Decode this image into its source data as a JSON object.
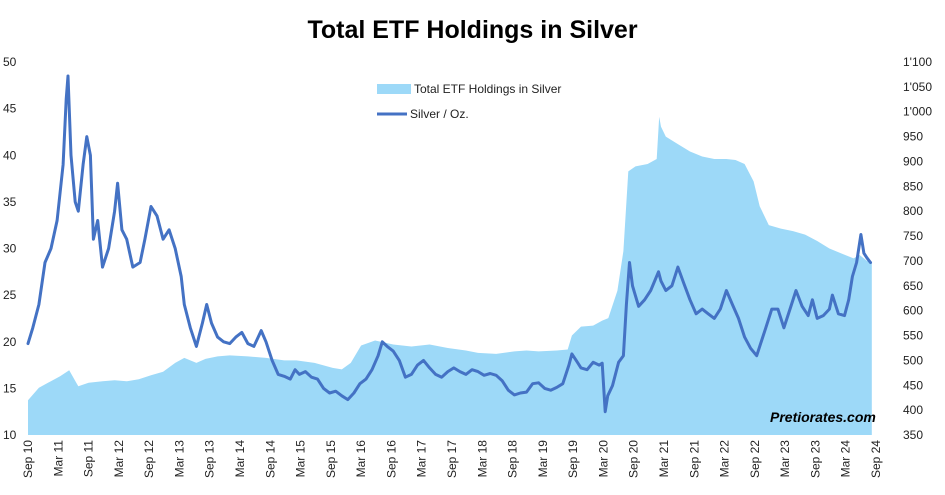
{
  "chart_data": {
    "type": "line",
    "title": "Total ETF Holdings in Silver",
    "watermark": "Pretiorates.com",
    "left_axis": {
      "ylim": [
        10,
        50
      ],
      "ticks": [
        10,
        15,
        20,
        25,
        30,
        35,
        40,
        45,
        50
      ],
      "tick_labels": [
        "10",
        "15",
        "20",
        "25",
        "30",
        "35",
        "40",
        "45",
        "50"
      ]
    },
    "right_axis": {
      "ylim": [
        350,
        1100
      ],
      "ticks": [
        350,
        400,
        450,
        500,
        550,
        600,
        650,
        700,
        750,
        800,
        850,
        900,
        950,
        1000,
        1050,
        1100
      ],
      "tick_labels": [
        "350",
        "400",
        "450",
        "500",
        "550",
        "600",
        "650",
        "700",
        "750",
        "800",
        "850",
        "900",
        "950",
        "1'000",
        "1'050",
        "1'100"
      ]
    },
    "x_axis": {
      "xlim": [
        2010.67,
        2024.67
      ],
      "ticks": [
        2010.67,
        2011.17,
        2011.67,
        2012.17,
        2012.67,
        2013.17,
        2013.67,
        2014.17,
        2014.67,
        2015.17,
        2015.67,
        2016.17,
        2016.67,
        2017.17,
        2017.67,
        2018.17,
        2018.67,
        2019.17,
        2019.67,
        2020.17,
        2020.67,
        2021.17,
        2021.67,
        2022.17,
        2022.67,
        2023.17,
        2023.67,
        2024.17,
        2024.67
      ],
      "tick_labels": [
        "Sep 10",
        "Mar 11",
        "Sep 11",
        "Mar 12",
        "Sep 12",
        "Mar 13",
        "Sep 13",
        "Mar 14",
        "Sep 14",
        "Mar 15",
        "Sep 15",
        "Mar 16",
        "Sep 16",
        "Mar 17",
        "Sep 17",
        "Mar 18",
        "Sep 18",
        "Mar 19",
        "Sep 19",
        "Mar 20",
        "Sep 20",
        "Mar 21",
        "Sep 21",
        "Mar 22",
        "Sep 22",
        "Mar 23",
        "Sep 23",
        "Mar 24",
        "Sep 24"
      ]
    },
    "legend": {
      "position": "top-center",
      "items": [
        {
          "label": "Total ETF Holdings in Silver",
          "kind": "area"
        },
        {
          "label": "Silver / Oz.",
          "kind": "line"
        }
      ]
    },
    "colors": {
      "area": "#9dd9f8",
      "line": "#4472c4"
    },
    "series": [
      {
        "name": "Total ETF Holdings in Silver",
        "type": "area",
        "axis": "right",
        "points": [
          [
            2010.67,
            420
          ],
          [
            2010.85,
            445
          ],
          [
            2011.0,
            455
          ],
          [
            2011.2,
            468
          ],
          [
            2011.35,
            480
          ],
          [
            2011.5,
            448
          ],
          [
            2011.67,
            455
          ],
          [
            2011.9,
            458
          ],
          [
            2012.1,
            460
          ],
          [
            2012.3,
            458
          ],
          [
            2012.5,
            462
          ],
          [
            2012.7,
            470
          ],
          [
            2012.9,
            477
          ],
          [
            2013.1,
            495
          ],
          [
            2013.25,
            505
          ],
          [
            2013.45,
            495
          ],
          [
            2013.6,
            503
          ],
          [
            2013.8,
            508
          ],
          [
            2014.0,
            510
          ],
          [
            2014.3,
            508
          ],
          [
            2014.6,
            505
          ],
          [
            2014.9,
            500
          ],
          [
            2015.1,
            500
          ],
          [
            2015.4,
            495
          ],
          [
            2015.7,
            485
          ],
          [
            2015.85,
            482
          ],
          [
            2016.0,
            495
          ],
          [
            2016.17,
            530
          ],
          [
            2016.4,
            540
          ],
          [
            2016.7,
            532
          ],
          [
            2017.0,
            528
          ],
          [
            2017.3,
            532
          ],
          [
            2017.6,
            525
          ],
          [
            2017.9,
            520
          ],
          [
            2018.1,
            515
          ],
          [
            2018.4,
            513
          ],
          [
            2018.7,
            518
          ],
          [
            2018.9,
            520
          ],
          [
            2019.1,
            518
          ],
          [
            2019.4,
            520
          ],
          [
            2019.58,
            522
          ],
          [
            2019.65,
            550
          ],
          [
            2019.8,
            568
          ],
          [
            2020.0,
            570
          ],
          [
            2020.15,
            580
          ],
          [
            2020.25,
            585
          ],
          [
            2020.4,
            640
          ],
          [
            2020.5,
            720
          ],
          [
            2020.58,
            880
          ],
          [
            2020.7,
            890
          ],
          [
            2020.9,
            895
          ],
          [
            2021.05,
            905
          ],
          [
            2021.09,
            990
          ],
          [
            2021.12,
            970
          ],
          [
            2021.2,
            950
          ],
          [
            2021.4,
            935
          ],
          [
            2021.6,
            920
          ],
          [
            2021.8,
            910
          ],
          [
            2022.0,
            905
          ],
          [
            2022.2,
            905
          ],
          [
            2022.35,
            903
          ],
          [
            2022.5,
            895
          ],
          [
            2022.65,
            860
          ],
          [
            2022.75,
            810
          ],
          [
            2022.9,
            772
          ],
          [
            2023.1,
            765
          ],
          [
            2023.3,
            760
          ],
          [
            2023.5,
            753
          ],
          [
            2023.7,
            740
          ],
          [
            2023.9,
            725
          ],
          [
            2024.1,
            715
          ],
          [
            2024.3,
            705
          ],
          [
            2024.4,
            712
          ],
          [
            2024.52,
            700
          ],
          [
            2024.6,
            698
          ]
        ]
      },
      {
        "name": "Silver / Oz.",
        "type": "line",
        "axis": "left",
        "points": [
          [
            2010.67,
            19.8
          ],
          [
            2010.75,
            21.5
          ],
          [
            2010.85,
            24
          ],
          [
            2010.95,
            28.5
          ],
          [
            2011.05,
            30
          ],
          [
            2011.15,
            33
          ],
          [
            2011.25,
            39
          ],
          [
            2011.3,
            46
          ],
          [
            2011.33,
            48.5
          ],
          [
            2011.38,
            40
          ],
          [
            2011.45,
            35
          ],
          [
            2011.5,
            34
          ],
          [
            2011.58,
            39
          ],
          [
            2011.64,
            42
          ],
          [
            2011.7,
            40
          ],
          [
            2011.75,
            31
          ],
          [
            2011.82,
            33
          ],
          [
            2011.9,
            28
          ],
          [
            2012.0,
            30
          ],
          [
            2012.1,
            34
          ],
          [
            2012.15,
            37
          ],
          [
            2012.22,
            32
          ],
          [
            2012.3,
            31
          ],
          [
            2012.4,
            28
          ],
          [
            2012.52,
            28.5
          ],
          [
            2012.6,
            31
          ],
          [
            2012.7,
            34.5
          ],
          [
            2012.8,
            33.5
          ],
          [
            2012.9,
            31
          ],
          [
            2013.0,
            32
          ],
          [
            2013.1,
            30
          ],
          [
            2013.2,
            27
          ],
          [
            2013.25,
            24
          ],
          [
            2013.35,
            21.5
          ],
          [
            2013.45,
            19.5
          ],
          [
            2013.55,
            22
          ],
          [
            2013.62,
            24
          ],
          [
            2013.7,
            22
          ],
          [
            2013.8,
            20.5
          ],
          [
            2013.9,
            20
          ],
          [
            2014.0,
            19.8
          ],
          [
            2014.1,
            20.5
          ],
          [
            2014.2,
            21
          ],
          [
            2014.3,
            19.8
          ],
          [
            2014.4,
            19.5
          ],
          [
            2014.52,
            21.2
          ],
          [
            2014.6,
            20
          ],
          [
            2014.7,
            18
          ],
          [
            2014.8,
            16.5
          ],
          [
            2014.9,
            16.3
          ],
          [
            2015.0,
            16
          ],
          [
            2015.08,
            17
          ],
          [
            2015.15,
            16.5
          ],
          [
            2015.25,
            16.8
          ],
          [
            2015.35,
            16.2
          ],
          [
            2015.45,
            16
          ],
          [
            2015.55,
            15
          ],
          [
            2015.65,
            14.5
          ],
          [
            2015.75,
            14.7
          ],
          [
            2015.85,
            14.2
          ],
          [
            2015.95,
            13.8
          ],
          [
            2016.05,
            14.5
          ],
          [
            2016.15,
            15.5
          ],
          [
            2016.25,
            16
          ],
          [
            2016.35,
            17
          ],
          [
            2016.45,
            18.5
          ],
          [
            2016.52,
            20
          ],
          [
            2016.6,
            19.5
          ],
          [
            2016.7,
            19
          ],
          [
            2016.8,
            18
          ],
          [
            2016.9,
            16.2
          ],
          [
            2017.0,
            16.5
          ],
          [
            2017.1,
            17.5
          ],
          [
            2017.2,
            18
          ],
          [
            2017.3,
            17.2
          ],
          [
            2017.4,
            16.5
          ],
          [
            2017.5,
            16.2
          ],
          [
            2017.6,
            16.8
          ],
          [
            2017.7,
            17.2
          ],
          [
            2017.8,
            16.8
          ],
          [
            2017.9,
            16.5
          ],
          [
            2018.0,
            17
          ],
          [
            2018.1,
            16.8
          ],
          [
            2018.2,
            16.4
          ],
          [
            2018.3,
            16.6
          ],
          [
            2018.4,
            16.4
          ],
          [
            2018.5,
            15.8
          ],
          [
            2018.6,
            14.8
          ],
          [
            2018.7,
            14.3
          ],
          [
            2018.8,
            14.5
          ],
          [
            2018.9,
            14.6
          ],
          [
            2019.0,
            15.5
          ],
          [
            2019.1,
            15.6
          ],
          [
            2019.2,
            15
          ],
          [
            2019.3,
            14.8
          ],
          [
            2019.4,
            15.1
          ],
          [
            2019.5,
            15.5
          ],
          [
            2019.6,
            17.5
          ],
          [
            2019.65,
            18.7
          ],
          [
            2019.72,
            18
          ],
          [
            2019.8,
            17.2
          ],
          [
            2019.9,
            17
          ],
          [
            2020.0,
            17.8
          ],
          [
            2020.1,
            17.5
          ],
          [
            2020.15,
            17.7
          ],
          [
            2020.2,
            12.5
          ],
          [
            2020.24,
            14.2
          ],
          [
            2020.32,
            15.3
          ],
          [
            2020.42,
            17.8
          ],
          [
            2020.5,
            18.5
          ],
          [
            2020.55,
            24
          ],
          [
            2020.6,
            28.5
          ],
          [
            2020.65,
            26
          ],
          [
            2020.75,
            23.8
          ],
          [
            2020.85,
            24.5
          ],
          [
            2020.95,
            25.5
          ],
          [
            2021.08,
            27.5
          ],
          [
            2021.12,
            26.5
          ],
          [
            2021.2,
            25.5
          ],
          [
            2021.3,
            26
          ],
          [
            2021.4,
            28
          ],
          [
            2021.5,
            26.2
          ],
          [
            2021.6,
            24.5
          ],
          [
            2021.7,
            23
          ],
          [
            2021.8,
            23.5
          ],
          [
            2021.9,
            23
          ],
          [
            2022.0,
            22.5
          ],
          [
            2022.1,
            23.5
          ],
          [
            2022.2,
            25.5
          ],
          [
            2022.3,
            24
          ],
          [
            2022.4,
            22.5
          ],
          [
            2022.5,
            20.5
          ],
          [
            2022.6,
            19.3
          ],
          [
            2022.7,
            18.5
          ],
          [
            2022.75,
            19.5
          ],
          [
            2022.85,
            21.5
          ],
          [
            2022.95,
            23.5
          ],
          [
            2023.05,
            23.5
          ],
          [
            2023.15,
            21.5
          ],
          [
            2023.25,
            23.5
          ],
          [
            2023.35,
            25.5
          ],
          [
            2023.45,
            23.8
          ],
          [
            2023.55,
            22.8
          ],
          [
            2023.62,
            24.5
          ],
          [
            2023.7,
            22.5
          ],
          [
            2023.8,
            22.8
          ],
          [
            2023.9,
            23.5
          ],
          [
            2023.95,
            25
          ],
          [
            2024.05,
            23
          ],
          [
            2024.15,
            22.8
          ],
          [
            2024.22,
            24.5
          ],
          [
            2024.28,
            27
          ],
          [
            2024.35,
            28.5
          ],
          [
            2024.42,
            31.5
          ],
          [
            2024.47,
            29.5
          ],
          [
            2024.52,
            29
          ],
          [
            2024.58,
            28.5
          ]
        ]
      }
    ]
  }
}
